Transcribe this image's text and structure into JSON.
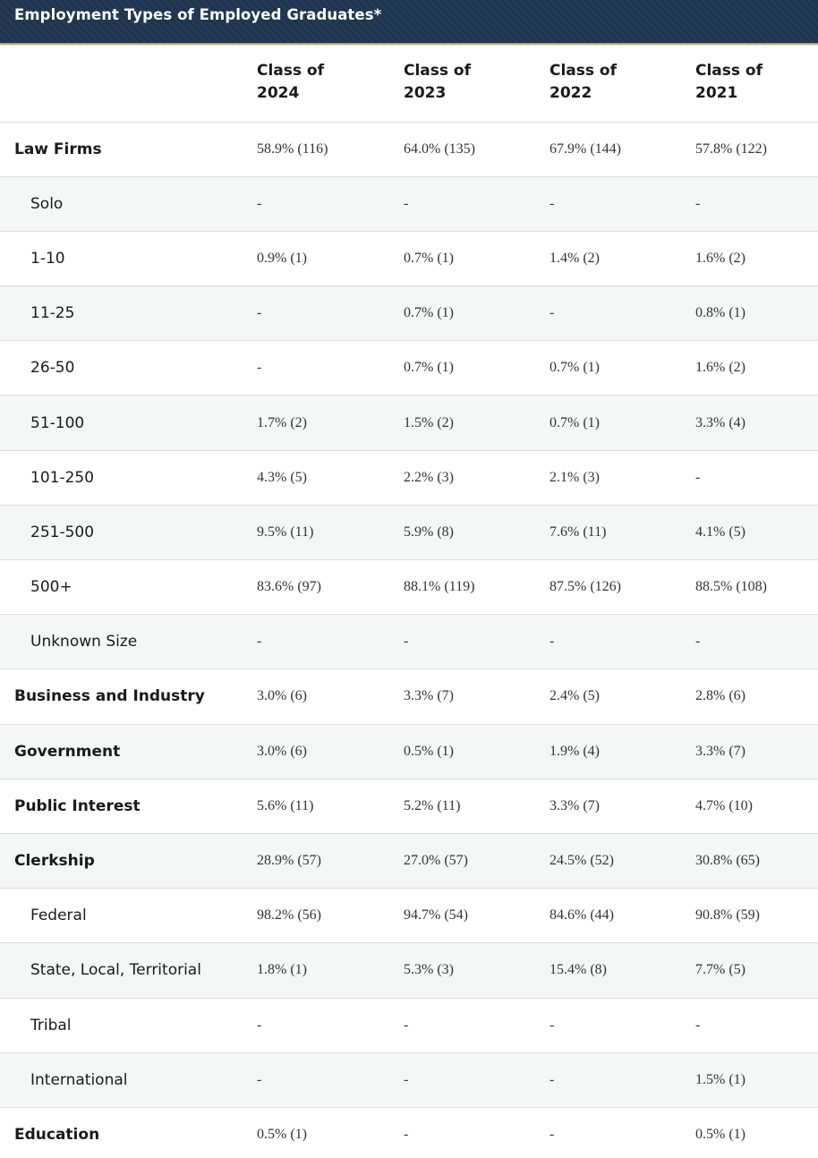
{
  "title": "Employment Types of Employed Graduates*",
  "columns": [
    {
      "line1": "Class of",
      "line2": "2024"
    },
    {
      "line1": "Class of",
      "line2": "2023"
    },
    {
      "line1": "Class of",
      "line2": "2022"
    },
    {
      "line1": "Class of",
      "line2": "2021"
    }
  ],
  "rows": [
    {
      "label": "Law Firms",
      "level": "main",
      "values": [
        "58.9% (116)",
        "64.0% (135)",
        "67.9% (144)",
        "57.8% (122)"
      ]
    },
    {
      "label": "Solo",
      "level": "sub",
      "values": [
        "-",
        "-",
        "-",
        "-"
      ]
    },
    {
      "label": "1-10",
      "level": "sub",
      "values": [
        "0.9% (1)",
        "0.7% (1)",
        "1.4% (2)",
        "1.6% (2)"
      ]
    },
    {
      "label": "11-25",
      "level": "sub",
      "values": [
        "-",
        "0.7% (1)",
        "-",
        "0.8% (1)"
      ]
    },
    {
      "label": "26-50",
      "level": "sub",
      "values": [
        "-",
        "0.7% (1)",
        "0.7% (1)",
        "1.6% (2)"
      ]
    },
    {
      "label": "51-100",
      "level": "sub",
      "values": [
        "1.7% (2)",
        "1.5% (2)",
        "0.7% (1)",
        "3.3% (4)"
      ]
    },
    {
      "label": "101-250",
      "level": "sub",
      "values": [
        "4.3% (5)",
        "2.2% (3)",
        "2.1% (3)",
        "-"
      ]
    },
    {
      "label": "251-500",
      "level": "sub",
      "values": [
        "9.5% (11)",
        "5.9% (8)",
        "7.6% (11)",
        "4.1% (5)"
      ]
    },
    {
      "label": "500+",
      "level": "sub",
      "values": [
        "83.6% (97)",
        "88.1% (119)",
        "87.5% (126)",
        "88.5% (108)"
      ]
    },
    {
      "label": "Unknown Size",
      "level": "sub",
      "values": [
        "-",
        "-",
        "-",
        "-"
      ]
    },
    {
      "label": "Business and Industry",
      "level": "main",
      "values": [
        "3.0% (6)",
        "3.3% (7)",
        "2.4% (5)",
        "2.8% (6)"
      ]
    },
    {
      "label": "Government",
      "level": "main",
      "values": [
        "3.0% (6)",
        "0.5% (1)",
        "1.9% (4)",
        "3.3% (7)"
      ]
    },
    {
      "label": "Public Interest",
      "level": "main",
      "values": [
        "5.6% (11)",
        "5.2% (11)",
        "3.3% (7)",
        "4.7% (10)"
      ]
    },
    {
      "label": "Clerkship",
      "level": "main",
      "values": [
        "28.9% (57)",
        "27.0% (57)",
        "24.5% (52)",
        "30.8% (65)"
      ]
    },
    {
      "label": "Federal",
      "level": "sub",
      "values": [
        "98.2% (56)",
        "94.7% (54)",
        "84.6% (44)",
        "90.8% (59)"
      ]
    },
    {
      "label": "State, Local, Territorial",
      "level": "sub",
      "values": [
        "1.8% (1)",
        "5.3% (3)",
        "15.4% (8)",
        "7.7% (5)"
      ]
    },
    {
      "label": "Tribal",
      "level": "sub",
      "values": [
        "-",
        "-",
        "-",
        "-"
      ]
    },
    {
      "label": "International",
      "level": "sub",
      "values": [
        "-",
        "-",
        "-",
        "1.5% (1)"
      ]
    },
    {
      "label": "Education",
      "level": "main",
      "values": [
        "0.5% (1)",
        "-",
        "-",
        "0.5% (1)"
      ]
    }
  ]
}
